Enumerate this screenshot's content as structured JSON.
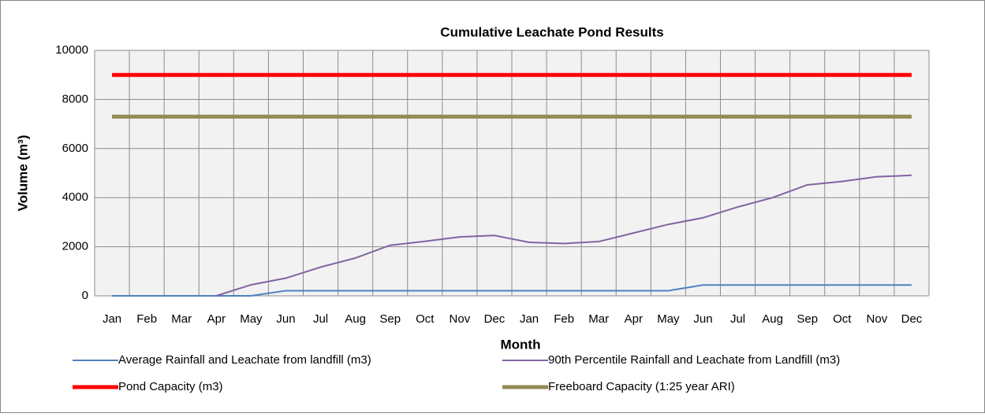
{
  "chart_data": {
    "type": "line",
    "title": "Cumulative Leachate Pond Results",
    "x_label": "Month",
    "y_label": "Volume (m³)",
    "categories": [
      "Jan",
      "Feb",
      "Mar",
      "Apr",
      "May",
      "Jun",
      "Jul",
      "Aug",
      "Sep",
      "Oct",
      "Nov",
      "Dec",
      "Jan",
      "Feb",
      "Mar",
      "Apr",
      "May",
      "Jun",
      "Jul",
      "Aug",
      "Sep",
      "Oct",
      "Nov",
      "Dec"
    ],
    "ylim": [
      0,
      10000
    ],
    "yticks": [
      0,
      2000,
      4000,
      6000,
      8000,
      10000
    ],
    "grid": true,
    "legend": "bottom",
    "series": [
      {
        "name": "Average Rainfall and Leachate from landfill (m3)",
        "color": "#4f81bd",
        "line_width": 2,
        "values": [
          0,
          0,
          0,
          0,
          0,
          210,
          210,
          210,
          210,
          210,
          210,
          210,
          210,
          210,
          210,
          210,
          210,
          440,
          440,
          440,
          440,
          440,
          440,
          440
        ]
      },
      {
        "name": "90th Percentile Rainfall and Leachate from Landfill (m3)",
        "color": "#8064a2",
        "line_width": 2,
        "values": [
          null,
          null,
          null,
          0,
          450,
          720,
          1170,
          1540,
          2060,
          2220,
          2400,
          2460,
          2180,
          2130,
          2210,
          2560,
          2910,
          3180,
          3620,
          4000,
          4520,
          4660,
          4850,
          4910
        ]
      },
      {
        "name": "Pond Capacity (m3)",
        "color": "#ff0000",
        "line_width": 5,
        "values": [
          9000,
          9000,
          9000,
          9000,
          9000,
          9000,
          9000,
          9000,
          9000,
          9000,
          9000,
          9000,
          9000,
          9000,
          9000,
          9000,
          9000,
          9000,
          9000,
          9000,
          9000,
          9000,
          9000,
          9000
        ]
      },
      {
        "name": "Freeboard Capacity (1:25 year ARI)",
        "color": "#948a54",
        "line_width": 5,
        "values": [
          7300,
          7300,
          7300,
          7300,
          7300,
          7300,
          7300,
          7300,
          7300,
          7300,
          7300,
          7300,
          7300,
          7300,
          7300,
          7300,
          7300,
          7300,
          7300,
          7300,
          7300,
          7300,
          7300,
          7300
        ]
      }
    ]
  }
}
